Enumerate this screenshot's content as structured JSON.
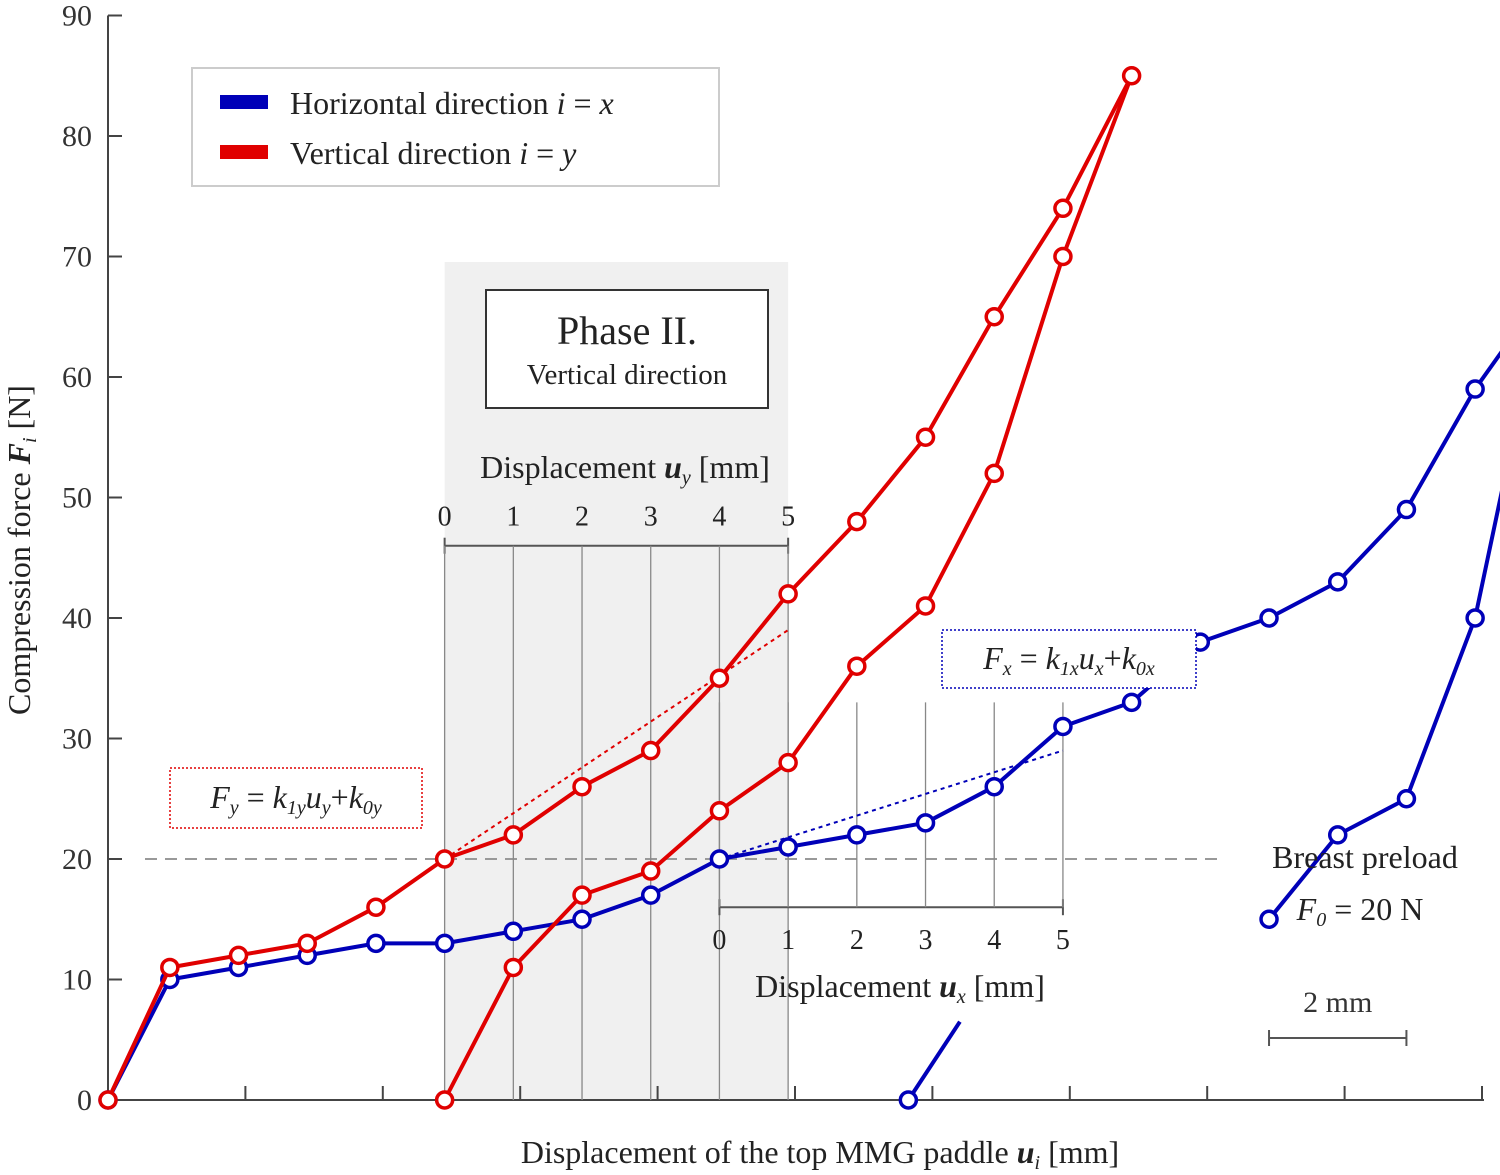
{
  "chart_data": {
    "type": "line",
    "xlabel_main": "Displacement of the top MMG paddle ",
    "xlabel_symbol": "u",
    "xlabel_subscript": "i",
    "xlabel_unit": " [mm]",
    "ylabel_main": "Compression force ",
    "ylabel_symbol": "F",
    "ylabel_subscript": "i",
    "ylabel_unit": " [N]",
    "x_units": "mm",
    "xlim": [
      -8.3,
      31.5
    ],
    "ylim": [
      0,
      90
    ],
    "yticks": [
      "0",
      "10",
      "20",
      "30",
      "40",
      "50",
      "60",
      "70",
      "80",
      "90"
    ],
    "legend": {
      "position": "top-left",
      "items": [
        {
          "text": "Horizontal direction ",
          "var": "i",
          "eq": " = ",
          "val": "x",
          "color": "#0000b8"
        },
        {
          "text": "Vertical direction ",
          "var": "i",
          "eq": " = ",
          "val": "y",
          "color": "#e00000"
        }
      ]
    },
    "series": [
      {
        "name": "Horizontal direction i = x",
        "color": "#0000b8",
        "loops": [
          [
            [
              -8.3,
              0
            ],
            [
              -6.5,
              10
            ],
            [
              -4.5,
              11
            ],
            [
              -2.5,
              12
            ],
            [
              -0.5,
              13
            ],
            [
              1.5,
              13
            ],
            [
              3.5,
              14
            ],
            [
              5.5,
              15
            ],
            [
              7.5,
              17
            ],
            [
              9.5,
              20
            ],
            [
              11.5,
              21
            ],
            [
              13.5,
              22
            ],
            [
              15.5,
              23
            ],
            [
              17.5,
              26
            ],
            [
              19.5,
              31
            ],
            [
              21.5,
              33
            ],
            [
              23.5,
              38
            ],
            [
              25.5,
              40
            ],
            [
              27.5,
              43
            ],
            [
              29.5,
              49
            ],
            [
              31.5,
              59
            ],
            [
              33.5,
              67
            ]
          ],
          [
            [
              33.5,
              67
            ],
            [
              31.5,
              40
            ],
            [
              29.5,
              25
            ],
            [
              27.5,
              22
            ],
            [
              25.5,
              15
            ]
          ],
          [
            [
              15,
              0
            ],
            [
              16.5,
              6.5
            ]
          ]
        ]
      },
      {
        "name": "Vertical direction i = y",
        "color": "#e00000",
        "loops": [
          [
            [
              -8.3,
              0
            ],
            [
              -6.5,
              11
            ],
            [
              -4.5,
              12
            ],
            [
              -2.5,
              13
            ],
            [
              -0.5,
              16
            ],
            [
              1.5,
              20
            ],
            [
              3.5,
              22
            ],
            [
              5.5,
              26
            ],
            [
              7.5,
              29
            ],
            [
              9.5,
              35
            ],
            [
              11.5,
              42
            ],
            [
              13.5,
              48
            ],
            [
              15.5,
              55
            ],
            [
              17.5,
              65
            ],
            [
              19.5,
              74
            ],
            [
              21.5,
              85
            ]
          ],
          [
            [
              21.5,
              85
            ],
            [
              19.5,
              70
            ],
            [
              17.5,
              52
            ],
            [
              15.5,
              41
            ],
            [
              13.5,
              36
            ],
            [
              11.5,
              28
            ],
            [
              9.5,
              24
            ],
            [
              7.5,
              19
            ],
            [
              5.5,
              17
            ],
            [
              3.5,
              11
            ],
            [
              1.5,
              0
            ]
          ]
        ]
      }
    ],
    "preload": {
      "value": 20,
      "label_line1": "Breast preload",
      "label_sym": "F",
      "label_sub": "0",
      "label_val": " = 20 N"
    },
    "phase_box": {
      "x_range": [
        1.5,
        11.5
      ],
      "title": "Phase II.",
      "subtitle": "Vertical direction"
    },
    "inset_y": {
      "label_main": "Displacement ",
      "label_sym": "u",
      "label_sub": "y",
      "label_unit": " [mm]",
      "ticks": [
        "0",
        "1",
        "2",
        "3",
        "4",
        "5"
      ],
      "x_start": 1.5,
      "x_end": 11.5,
      "axis_y": 46
    },
    "inset_x": {
      "label_main": "Displacement ",
      "label_sym": "u",
      "label_sub": "x",
      "label_unit": " [mm]",
      "ticks": [
        "0",
        "1",
        "2",
        "3",
        "4",
        "5"
      ],
      "x_start": 9.5,
      "x_end": 19.5,
      "axis_y": 16
    },
    "fit_y": {
      "from": [
        1.5,
        20
      ],
      "to": [
        11.5,
        39
      ]
    },
    "fit_x": {
      "from": [
        9.5,
        20
      ],
      "to": [
        19.5,
        29
      ]
    },
    "eq_y": {
      "F": "F",
      "Fsub": "y",
      "k1": "k",
      "k1sub": "1y",
      "u": "u",
      "usub": "y",
      "k0": "k",
      "k0sub": "0y"
    },
    "eq_x": {
      "F": "F",
      "Fsub": "x",
      "k1": "k",
      "k1sub": "1x",
      "u": "u",
      "usub": "x",
      "k0": "k",
      "k0sub": "0x"
    },
    "scale_bar": {
      "label": "2 mm",
      "x_start": 25.5,
      "x_end": 29.5
    }
  }
}
